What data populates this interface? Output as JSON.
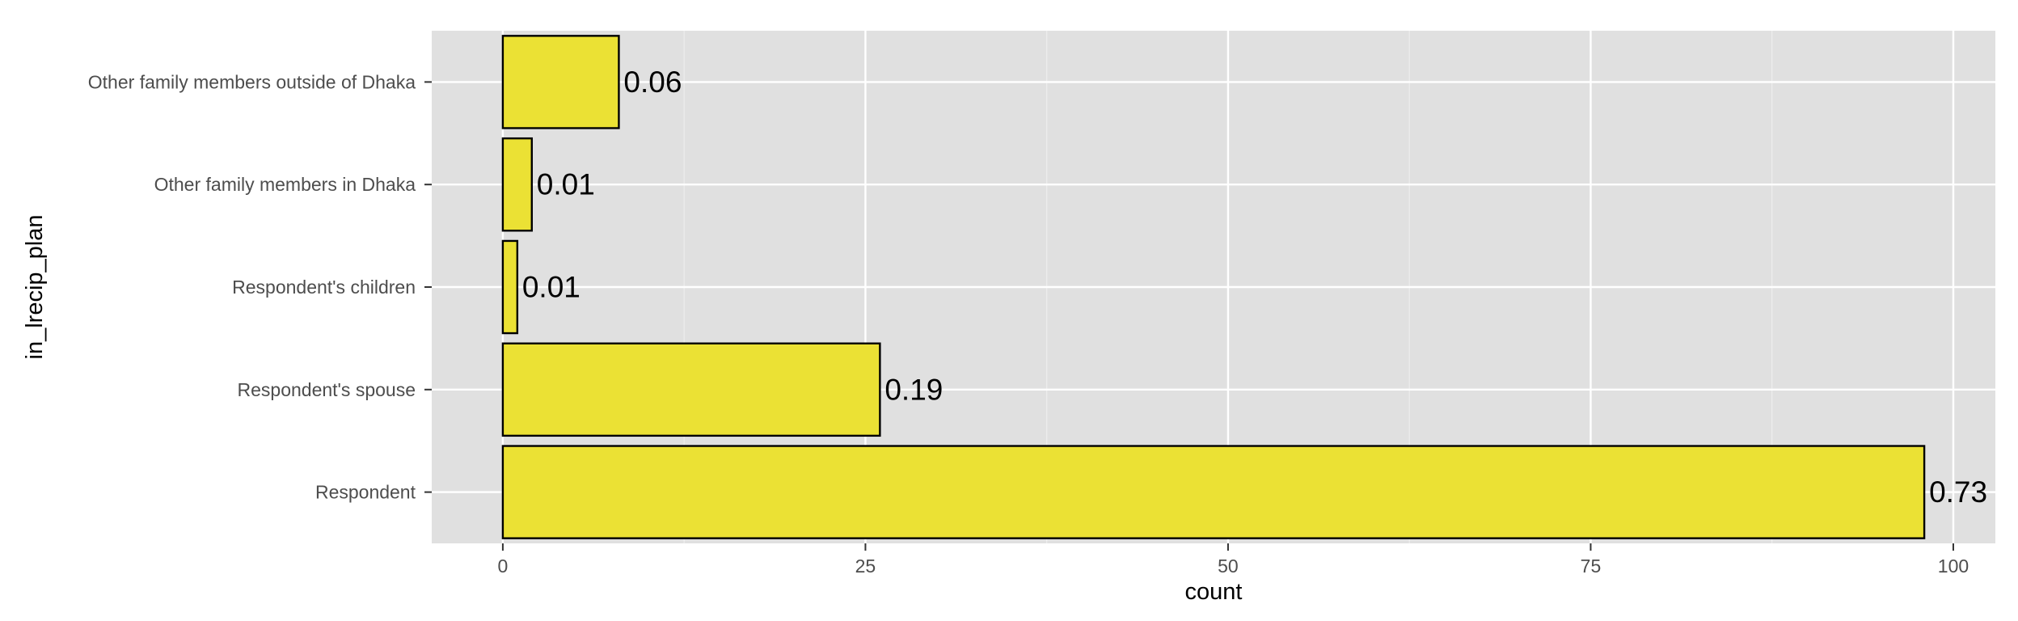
{
  "chart_data": {
    "type": "bar",
    "orientation": "horizontal",
    "categories": [
      "Respondent",
      "Respondent's spouse",
      "Respondent's children",
      "Other family members in Dhaka",
      "Other family members outside of Dhaka"
    ],
    "values": [
      98,
      26,
      1,
      2,
      8
    ],
    "labels": [
      "0.73",
      "0.19",
      "0.01",
      "0.01",
      "0.06"
    ],
    "xlabel": "count",
    "ylabel": "in_lrecip_plan",
    "xlim": [
      -4.9,
      102.9
    ],
    "xticks": [
      0,
      25,
      50,
      75,
      100
    ],
    "xtick_labels": [
      "0",
      "25",
      "50",
      "75",
      "100"
    ],
    "grid": true,
    "legend": "none",
    "colors": {
      "bar_fill": "#EBE134",
      "bar_stroke": "#000000",
      "panel_bg": "#E0E0E0",
      "grid_major": "#FFFFFF",
      "grid_minor": "#EDEDED"
    }
  }
}
